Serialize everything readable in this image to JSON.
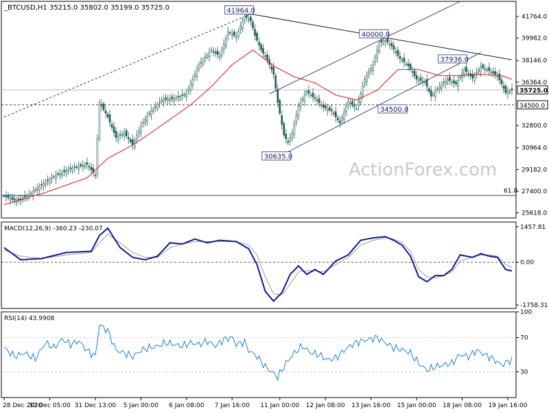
{
  "header": {
    "symbol": "_BTCUSD,H1",
    "ohlc": "35215.0 35802.0 35199.0 35725.0"
  },
  "watermark": "ActionForex.com",
  "colors": {
    "candle": "#1e5a54",
    "ma": "#e01010",
    "macd": "#0a1a8c",
    "signal": "#999999",
    "rsi": "#1a7fd0",
    "channel": "#1a3a6a",
    "trend": "#000000"
  },
  "chart_data": [
    {
      "type": "candlestick",
      "panel": "price",
      "ylim": [
        25200,
        43000
      ],
      "y_ticks": [
        25618.0,
        27400.0,
        29182.0,
        30964.0,
        32800.0,
        34500.0,
        36364.0,
        38146.0,
        39982.0,
        41764.0
      ],
      "y_tick_labels": [
        "25618.0",
        "27400.0",
        "29182.0",
        "30964.0",
        "32800.0",
        "34500.0",
        "36364.0",
        "38146.0",
        "39982.0",
        "41764.0"
      ],
      "current_price": "35725.0",
      "support_label": "34500.0",
      "fib_level": {
        "label": "61.8",
        "value": 27050
      },
      "annotations": [
        {
          "text": "41964.0",
          "value": 41964
        },
        {
          "text": "40000.0",
          "value": 40000
        },
        {
          "text": "37936.0",
          "value": 37936
        },
        {
          "text": "34500.0",
          "value": 34500
        },
        {
          "text": "30635.0",
          "value": 30635
        }
      ],
      "x_tick_labels": [
        "28 Dec 2020",
        "30 Dec 05:00",
        "31 Dec 13:00",
        "5 Jan 00:00",
        "6 Jan 08:00",
        "7 Jan 16:00",
        "11 Jan 00:00",
        "12 Jan 08:00",
        "13 Jan 16:00",
        "15 Jan 00:00",
        "18 Jan 08:00",
        "19 Jan 16:00"
      ],
      "close_path": [
        [
          0,
          27000
        ],
        [
          6,
          26600
        ],
        [
          12,
          27100
        ],
        [
          18,
          27900
        ],
        [
          24,
          28600
        ],
        [
          32,
          29250
        ],
        [
          40,
          29600
        ],
        [
          44,
          28700
        ],
        [
          46,
          34700
        ],
        [
          50,
          33500
        ],
        [
          54,
          31800
        ],
        [
          58,
          32200
        ],
        [
          62,
          31200
        ],
        [
          66,
          32800
        ],
        [
          70,
          33800
        ],
        [
          76,
          34900
        ],
        [
          82,
          35000
        ],
        [
          88,
          35400
        ],
        [
          94,
          37800
        ],
        [
          100,
          39000
        ],
        [
          104,
          38500
        ],
        [
          108,
          40500
        ],
        [
          112,
          40100
        ],
        [
          116,
          41800
        ],
        [
          119,
          41400
        ],
        [
          121,
          40200
        ],
        [
          124,
          39000
        ],
        [
          127,
          38200
        ],
        [
          130,
          37000
        ],
        [
          132,
          34700
        ],
        [
          135,
          32000
        ],
        [
          137,
          31400
        ],
        [
          139,
          32200
        ],
        [
          142,
          34400
        ],
        [
          146,
          35600
        ],
        [
          150,
          35000
        ],
        [
          154,
          34300
        ],
        [
          158,
          34000
        ],
        [
          162,
          33000
        ],
        [
          166,
          34800
        ],
        [
          170,
          34200
        ],
        [
          174,
          36600
        ],
        [
          178,
          37800
        ],
        [
          181,
          39600
        ],
        [
          184,
          39800
        ],
        [
          187,
          39300
        ],
        [
          191,
          38300
        ],
        [
          195,
          37700
        ],
        [
          199,
          36600
        ],
        [
          203,
          36400
        ],
        [
          206,
          35200
        ],
        [
          210,
          36000
        ],
        [
          214,
          36600
        ],
        [
          218,
          36200
        ],
        [
          222,
          37400
        ],
        [
          226,
          36700
        ],
        [
          230,
          37600
        ],
        [
          234,
          37300
        ],
        [
          238,
          36900
        ],
        [
          242,
          35500
        ],
        [
          245,
          35725
        ]
      ],
      "ma_path": [
        [
          0,
          26300
        ],
        [
          20,
          27300
        ],
        [
          40,
          28500
        ],
        [
          50,
          30100
        ],
        [
          60,
          31000
        ],
        [
          70,
          32100
        ],
        [
          80,
          33300
        ],
        [
          90,
          34500
        ],
        [
          100,
          36000
        ],
        [
          110,
          37800
        ],
        [
          120,
          39000
        ],
        [
          130,
          37700
        ],
        [
          140,
          36800
        ],
        [
          150,
          36300
        ],
        [
          160,
          35300
        ],
        [
          170,
          34900
        ],
        [
          180,
          35700
        ],
        [
          190,
          37400
        ],
        [
          200,
          37400
        ],
        [
          210,
          36900
        ],
        [
          220,
          36900
        ],
        [
          230,
          37000
        ],
        [
          240,
          36900
        ],
        [
          245,
          36600
        ]
      ]
    },
    {
      "type": "line",
      "panel": "macd",
      "title": "MACD(12,26,9) -360.23 -230.07",
      "ylim": [
        -1900,
        1650
      ],
      "y_ticks": [
        1457.81,
        0.0,
        -1758.31
      ],
      "y_tick_labels": [
        "1457.81",
        "0.00",
        "-1758.31"
      ],
      "series": [
        {
          "role": "macd",
          "points": [
            [
              0,
              600
            ],
            [
              8,
              100
            ],
            [
              18,
              150
            ],
            [
              30,
              400
            ],
            [
              42,
              450
            ],
            [
              46,
              1100
            ],
            [
              50,
              1400
            ],
            [
              56,
              600
            ],
            [
              62,
              200
            ],
            [
              68,
              100
            ],
            [
              74,
              250
            ],
            [
              80,
              800
            ],
            [
              86,
              750
            ],
            [
              92,
              950
            ],
            [
              98,
              800
            ],
            [
              104,
              900
            ],
            [
              112,
              850
            ],
            [
              118,
              550
            ],
            [
              122,
              -100
            ],
            [
              126,
              -1200
            ],
            [
              130,
              -1600
            ],
            [
              134,
              -1250
            ],
            [
              138,
              -500
            ],
            [
              142,
              -150
            ],
            [
              146,
              -500
            ],
            [
              150,
              -300
            ],
            [
              154,
              -500
            ],
            [
              160,
              50
            ],
            [
              166,
              300
            ],
            [
              172,
              900
            ],
            [
              178,
              1000
            ],
            [
              184,
              1050
            ],
            [
              188,
              900
            ],
            [
              192,
              700
            ],
            [
              196,
              250
            ],
            [
              200,
              -600
            ],
            [
              204,
              -800
            ],
            [
              208,
              -550
            ],
            [
              212,
              -550
            ],
            [
              216,
              -300
            ],
            [
              220,
              300
            ],
            [
              226,
              200
            ],
            [
              230,
              350
            ],
            [
              234,
              250
            ],
            [
              238,
              200
            ],
            [
              242,
              -300
            ],
            [
              245,
              -360
            ]
          ]
        },
        {
          "role": "signal",
          "points": [
            [
              0,
              500
            ],
            [
              8,
              250
            ],
            [
              18,
              150
            ],
            [
              30,
              300
            ],
            [
              42,
              400
            ],
            [
              46,
              800
            ],
            [
              50,
              1150
            ],
            [
              56,
              800
            ],
            [
              62,
              400
            ],
            [
              68,
              200
            ],
            [
              74,
              200
            ],
            [
              80,
              600
            ],
            [
              86,
              750
            ],
            [
              92,
              850
            ],
            [
              98,
              850
            ],
            [
              104,
              850
            ],
            [
              112,
              850
            ],
            [
              118,
              700
            ],
            [
              122,
              300
            ],
            [
              126,
              -600
            ],
            [
              130,
              -1300
            ],
            [
              134,
              -1350
            ],
            [
              138,
              -900
            ],
            [
              142,
              -400
            ],
            [
              146,
              -350
            ],
            [
              150,
              -350
            ],
            [
              154,
              -400
            ],
            [
              160,
              -100
            ],
            [
              166,
              200
            ],
            [
              172,
              700
            ],
            [
              178,
              900
            ],
            [
              184,
              1000
            ],
            [
              188,
              950
            ],
            [
              192,
              800
            ],
            [
              196,
              450
            ],
            [
              200,
              -300
            ],
            [
              204,
              -600
            ],
            [
              208,
              -650
            ],
            [
              212,
              -550
            ],
            [
              216,
              -400
            ],
            [
              220,
              50
            ],
            [
              226,
              200
            ],
            [
              230,
              300
            ],
            [
              234,
              300
            ],
            [
              238,
              250
            ],
            [
              242,
              -100
            ],
            [
              245,
              -230
            ]
          ]
        }
      ]
    },
    {
      "type": "line",
      "panel": "rsi",
      "title": "RSI(14) 43.9908",
      "ylim": [
        0,
        100
      ],
      "y_ticks": [
        100,
        70,
        30
      ],
      "y_tick_labels": [
        "100",
        "70",
        "30"
      ],
      "series": [
        {
          "role": "rsi",
          "points": [
            [
              0,
              58
            ],
            [
              5,
              48
            ],
            [
              10,
              52
            ],
            [
              15,
              45
            ],
            [
              20,
              64
            ],
            [
              24,
              58
            ],
            [
              28,
              68
            ],
            [
              32,
              62
            ],
            [
              36,
              66
            ],
            [
              40,
              55
            ],
            [
              44,
              48
            ],
            [
              46,
              85
            ],
            [
              50,
              78
            ],
            [
              54,
              55
            ],
            [
              58,
              52
            ],
            [
              62,
              48
            ],
            [
              66,
              55
            ],
            [
              70,
              58
            ],
            [
              74,
              60
            ],
            [
              78,
              64
            ],
            [
              82,
              62
            ],
            [
              86,
              60
            ],
            [
              90,
              64
            ],
            [
              94,
              62
            ],
            [
              98,
              66
            ],
            [
              102,
              60
            ],
            [
              106,
              68
            ],
            [
              110,
              70
            ],
            [
              112,
              62
            ],
            [
              116,
              65
            ],
            [
              118,
              55
            ],
            [
              122,
              48
            ],
            [
              126,
              36
            ],
            [
              130,
              28
            ],
            [
              132,
              24
            ],
            [
              136,
              40
            ],
            [
              140,
              52
            ],
            [
              144,
              60
            ],
            [
              148,
              52
            ],
            [
              152,
              50
            ],
            [
              156,
              44
            ],
            [
              160,
              46
            ],
            [
              164,
              55
            ],
            [
              168,
              62
            ],
            [
              172,
              66
            ],
            [
              176,
              68
            ],
            [
              180,
              70
            ],
            [
              184,
              64
            ],
            [
              188,
              58
            ],
            [
              192,
              56
            ],
            [
              196,
              52
            ],
            [
              200,
              40
            ],
            [
              204,
              32
            ],
            [
              208,
              36
            ],
            [
              212,
              38
            ],
            [
              216,
              40
            ],
            [
              220,
              50
            ],
            [
              224,
              48
            ],
            [
              228,
              55
            ],
            [
              232,
              50
            ],
            [
              236,
              45
            ],
            [
              240,
              38
            ],
            [
              243,
              42
            ],
            [
              245,
              44
            ]
          ]
        }
      ]
    }
  ]
}
